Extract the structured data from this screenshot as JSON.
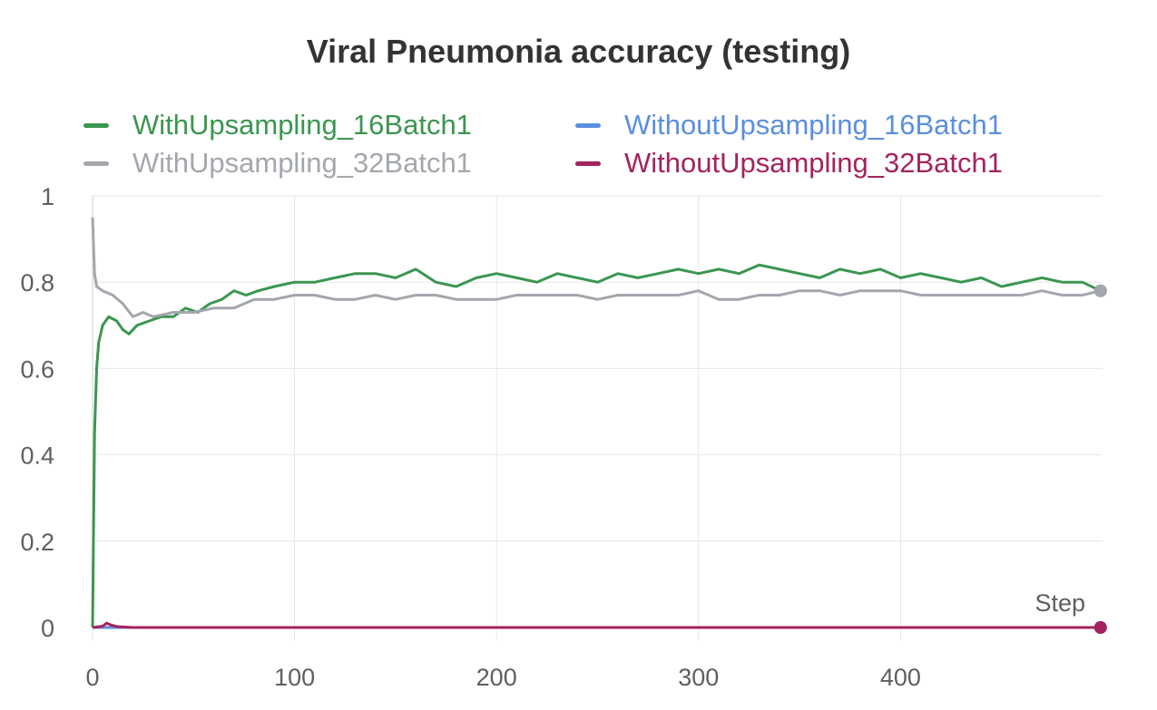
{
  "chart_data": {
    "type": "line",
    "title": "Viral Pneumonia accuracy (testing)",
    "xlabel": "Step",
    "ylabel": "",
    "xlim": [
      0,
      500
    ],
    "ylim": [
      0,
      1
    ],
    "x_ticks": [
      "0",
      "100",
      "200",
      "300",
      "400"
    ],
    "y_ticks": [
      "0",
      "0.2",
      "0.4",
      "0.6",
      "0.8",
      "1"
    ],
    "grid": true,
    "legend_position": "top",
    "series": [
      {
        "name": "WithUpsampling_16Batch1",
        "color": "#3b9650",
        "points": [
          [
            0,
            0
          ],
          [
            1,
            0.45
          ],
          [
            2,
            0.6
          ],
          [
            3,
            0.66
          ],
          [
            5,
            0.7
          ],
          [
            8,
            0.72
          ],
          [
            12,
            0.71
          ],
          [
            15,
            0.69
          ],
          [
            18,
            0.68
          ],
          [
            22,
            0.7
          ],
          [
            28,
            0.71
          ],
          [
            34,
            0.72
          ],
          [
            40,
            0.72
          ],
          [
            46,
            0.74
          ],
          [
            52,
            0.73
          ],
          [
            58,
            0.75
          ],
          [
            64,
            0.76
          ],
          [
            70,
            0.78
          ],
          [
            76,
            0.77
          ],
          [
            82,
            0.78
          ],
          [
            90,
            0.79
          ],
          [
            100,
            0.8
          ],
          [
            110,
            0.8
          ],
          [
            120,
            0.81
          ],
          [
            130,
            0.82
          ],
          [
            140,
            0.82
          ],
          [
            150,
            0.81
          ],
          [
            160,
            0.83
          ],
          [
            170,
            0.8
          ],
          [
            180,
            0.79
          ],
          [
            190,
            0.81
          ],
          [
            200,
            0.82
          ],
          [
            210,
            0.81
          ],
          [
            220,
            0.8
          ],
          [
            230,
            0.82
          ],
          [
            240,
            0.81
          ],
          [
            250,
            0.8
          ],
          [
            260,
            0.82
          ],
          [
            270,
            0.81
          ],
          [
            280,
            0.82
          ],
          [
            290,
            0.83
          ],
          [
            300,
            0.82
          ],
          [
            310,
            0.83
          ],
          [
            320,
            0.82
          ],
          [
            330,
            0.84
          ],
          [
            340,
            0.83
          ],
          [
            350,
            0.82
          ],
          [
            360,
            0.81
          ],
          [
            370,
            0.83
          ],
          [
            380,
            0.82
          ],
          [
            390,
            0.83
          ],
          [
            400,
            0.81
          ],
          [
            410,
            0.82
          ],
          [
            420,
            0.81
          ],
          [
            430,
            0.8
          ],
          [
            440,
            0.81
          ],
          [
            450,
            0.79
          ],
          [
            460,
            0.8
          ],
          [
            470,
            0.81
          ],
          [
            480,
            0.8
          ],
          [
            490,
            0.8
          ],
          [
            499,
            0.78
          ]
        ]
      },
      {
        "name": "WithUpsampling_32Batch1",
        "color": "#a3a7ad",
        "points": [
          [
            0,
            0.95
          ],
          [
            1,
            0.82
          ],
          [
            2,
            0.79
          ],
          [
            5,
            0.78
          ],
          [
            10,
            0.77
          ],
          [
            15,
            0.75
          ],
          [
            20,
            0.72
          ],
          [
            25,
            0.73
          ],
          [
            30,
            0.72
          ],
          [
            40,
            0.73
          ],
          [
            50,
            0.73
          ],
          [
            60,
            0.74
          ],
          [
            70,
            0.74
          ],
          [
            80,
            0.76
          ],
          [
            90,
            0.76
          ],
          [
            100,
            0.77
          ],
          [
            110,
            0.77
          ],
          [
            120,
            0.76
          ],
          [
            130,
            0.76
          ],
          [
            140,
            0.77
          ],
          [
            150,
            0.76
          ],
          [
            160,
            0.77
          ],
          [
            170,
            0.77
          ],
          [
            180,
            0.76
          ],
          [
            190,
            0.76
          ],
          [
            200,
            0.76
          ],
          [
            210,
            0.77
          ],
          [
            220,
            0.77
          ],
          [
            230,
            0.77
          ],
          [
            240,
            0.77
          ],
          [
            250,
            0.76
          ],
          [
            260,
            0.77
          ],
          [
            270,
            0.77
          ],
          [
            280,
            0.77
          ],
          [
            290,
            0.77
          ],
          [
            300,
            0.78
          ],
          [
            310,
            0.76
          ],
          [
            320,
            0.76
          ],
          [
            330,
            0.77
          ],
          [
            340,
            0.77
          ],
          [
            350,
            0.78
          ],
          [
            360,
            0.78
          ],
          [
            370,
            0.77
          ],
          [
            380,
            0.78
          ],
          [
            390,
            0.78
          ],
          [
            400,
            0.78
          ],
          [
            410,
            0.77
          ],
          [
            420,
            0.77
          ],
          [
            430,
            0.77
          ],
          [
            440,
            0.77
          ],
          [
            450,
            0.77
          ],
          [
            460,
            0.77
          ],
          [
            470,
            0.78
          ],
          [
            480,
            0.77
          ],
          [
            490,
            0.77
          ],
          [
            499,
            0.78
          ]
        ]
      },
      {
        "name": "WithoutUpsampling_16Batch1",
        "color": "#5b8fde",
        "points": [
          [
            0,
            0
          ],
          [
            100,
            0
          ],
          [
            200,
            0
          ],
          [
            300,
            0
          ],
          [
            400,
            0
          ],
          [
            499,
            0
          ]
        ]
      },
      {
        "name": "WithoutUpsampling_32Batch1",
        "color": "#a4235e",
        "points": [
          [
            0,
            0
          ],
          [
            5,
            0.003
          ],
          [
            7,
            0.01
          ],
          [
            9,
            0.006
          ],
          [
            12,
            0.002
          ],
          [
            20,
            0
          ],
          [
            100,
            0
          ],
          [
            200,
            0
          ],
          [
            300,
            0
          ],
          [
            400,
            0
          ],
          [
            499,
            0
          ]
        ]
      }
    ]
  }
}
